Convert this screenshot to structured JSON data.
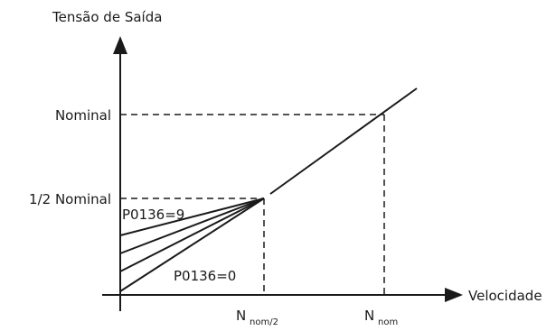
{
  "diagram": {
    "y_axis_label": "Tensão de Saída",
    "x_axis_label": "Velocidade",
    "y_levels": {
      "nominal": "Nominal",
      "half_nominal": "1/2 Nominal"
    },
    "x_marks": {
      "half": {
        "base": "N",
        "subscript": "nom/2"
      },
      "full": {
        "base": "N",
        "subscript": "nom"
      }
    },
    "parameter_labels": {
      "max": "P0136=9",
      "min": "P0136=0"
    },
    "colors": {
      "line": "#1a1a1a",
      "background": "#ffffff"
    }
  }
}
